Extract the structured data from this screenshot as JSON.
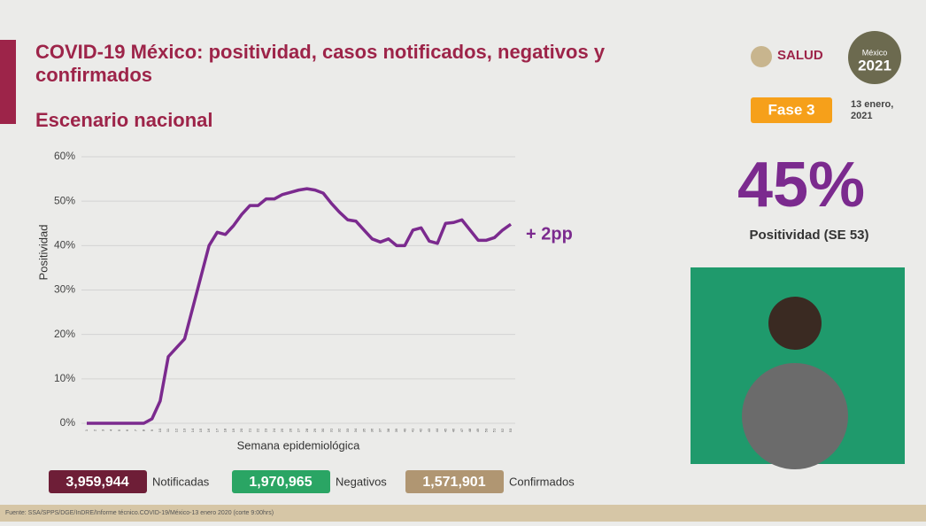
{
  "header": {
    "title_line1": "COVID-19 México: positividad, casos notificados, negativos y",
    "title_line2": "confirmados",
    "subtitle": "Escenario nacional",
    "salud": "SALUD",
    "mexico": "México",
    "year": "2021",
    "phase": "Fase 3",
    "date_line1": "13 enero,",
    "date_line2": "2021"
  },
  "kpi": {
    "value": "45%",
    "label": "Positividad (SE 53)"
  },
  "chart_data": {
    "type": "line",
    "y_label": "Positividad",
    "x_label": "Semana epidemiológica",
    "annotation": "+ 2pp",
    "x": [
      1,
      2,
      3,
      4,
      5,
      6,
      7,
      8,
      9,
      10,
      11,
      12,
      13,
      14,
      15,
      16,
      17,
      18,
      19,
      20,
      21,
      22,
      23,
      24,
      25,
      26,
      27,
      28,
      29,
      30,
      31,
      32,
      33,
      34,
      35,
      36,
      37,
      38,
      39,
      40,
      41,
      42,
      43,
      44,
      45,
      46,
      47,
      48,
      49,
      50,
      51,
      52,
      53
    ],
    "xlim": [
      1,
      53
    ],
    "xticks": [
      1,
      2,
      3,
      4,
      5,
      6,
      7,
      8,
      9,
      10,
      11,
      12,
      13,
      14,
      15,
      16,
      17,
      18,
      19,
      20,
      21,
      22,
      23,
      24,
      25,
      26,
      27,
      28,
      29,
      30,
      31,
      32,
      33,
      34,
      35,
      36,
      37,
      38,
      39,
      40,
      41,
      42,
      43,
      44,
      45,
      46,
      47,
      48,
      49,
      50,
      51,
      52,
      53
    ],
    "series": [
      {
        "name": "Positividad",
        "color": "#7b2a8e",
        "values": [
          0,
          0,
          0,
          0,
          0,
          0,
          0,
          0,
          1,
          5,
          15,
          17,
          19,
          26,
          33,
          40,
          43,
          42.5,
          44.5,
          47,
          49,
          49,
          50.5,
          50.5,
          51.5,
          52,
          52.5,
          52.8,
          52.5,
          51.8,
          49.5,
          47.5,
          45.8,
          45.5,
          43.5,
          41.5,
          40.8,
          41.5,
          40,
          40,
          43.5,
          44,
          41,
          40.5,
          45,
          45.2,
          45.8,
          43.5,
          41.2,
          41.2,
          41.8,
          43.5,
          44.8
        ]
      }
    ],
    "ylim": [
      0,
      60
    ],
    "yticks": [
      {
        "value": 0,
        "label": "0%"
      },
      {
        "value": 10,
        "label": "10%"
      },
      {
        "value": 20,
        "label": "20%"
      },
      {
        "value": 30,
        "label": "30%"
      },
      {
        "value": 40,
        "label": "40%"
      },
      {
        "value": 50,
        "label": "50%"
      },
      {
        "value": 60,
        "label": "60%"
      }
    ],
    "grid": true
  },
  "counters": [
    {
      "value": "3,959,944",
      "label": "Notificadas",
      "color": "#6e1e37"
    },
    {
      "value": "1,970,965",
      "label": "Negativos",
      "color": "#2aa564"
    },
    {
      "value": "1,571,901",
      "label": "Confirmados",
      "color": "#b09672"
    }
  ],
  "footer": "Fuente: SSA/SPPS/DGE/InDRE/Informe técnico.COVID-19/México-13 enero 2020 (corte 9:00hrs)"
}
